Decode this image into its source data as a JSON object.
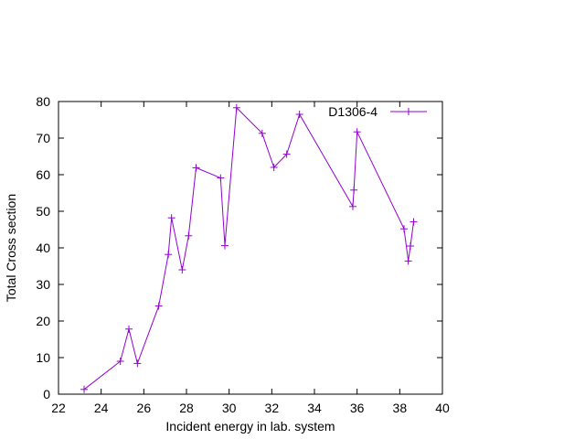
{
  "chart_data": {
    "type": "line",
    "title": "",
    "xlabel": "Incident energy in lab. system",
    "ylabel": "Total Cross section",
    "xlim": [
      22,
      40
    ],
    "ylim": [
      0,
      80
    ],
    "xticks": [
      22,
      24,
      26,
      28,
      30,
      32,
      34,
      36,
      38,
      40
    ],
    "yticks": [
      0,
      10,
      20,
      30,
      40,
      50,
      60,
      70,
      80
    ],
    "grid": false,
    "legend_position": "top-right",
    "series": [
      {
        "name": "D1306-4",
        "color": "#9400d3",
        "marker": "plus",
        "points": [
          [
            23.2,
            1.3
          ],
          [
            24.9,
            9.0
          ],
          [
            25.3,
            17.8
          ],
          [
            25.7,
            8.4
          ],
          [
            26.7,
            24.1
          ],
          [
            27.15,
            38.2
          ],
          [
            27.3,
            48.2
          ],
          [
            27.8,
            34.0
          ],
          [
            28.1,
            43.3
          ],
          [
            28.45,
            61.9
          ],
          [
            29.6,
            59.1
          ],
          [
            29.8,
            40.6
          ],
          [
            30.35,
            78.3
          ],
          [
            31.55,
            71.3
          ],
          [
            32.1,
            62.0
          ],
          [
            32.7,
            65.6
          ],
          [
            33.3,
            76.5
          ],
          [
            35.8,
            51.3
          ],
          [
            35.85,
            55.8
          ],
          [
            36.0,
            71.7
          ],
          [
            38.2,
            45.2
          ],
          [
            38.4,
            36.4
          ],
          [
            38.5,
            40.5
          ],
          [
            38.65,
            47.1
          ]
        ]
      }
    ]
  }
}
